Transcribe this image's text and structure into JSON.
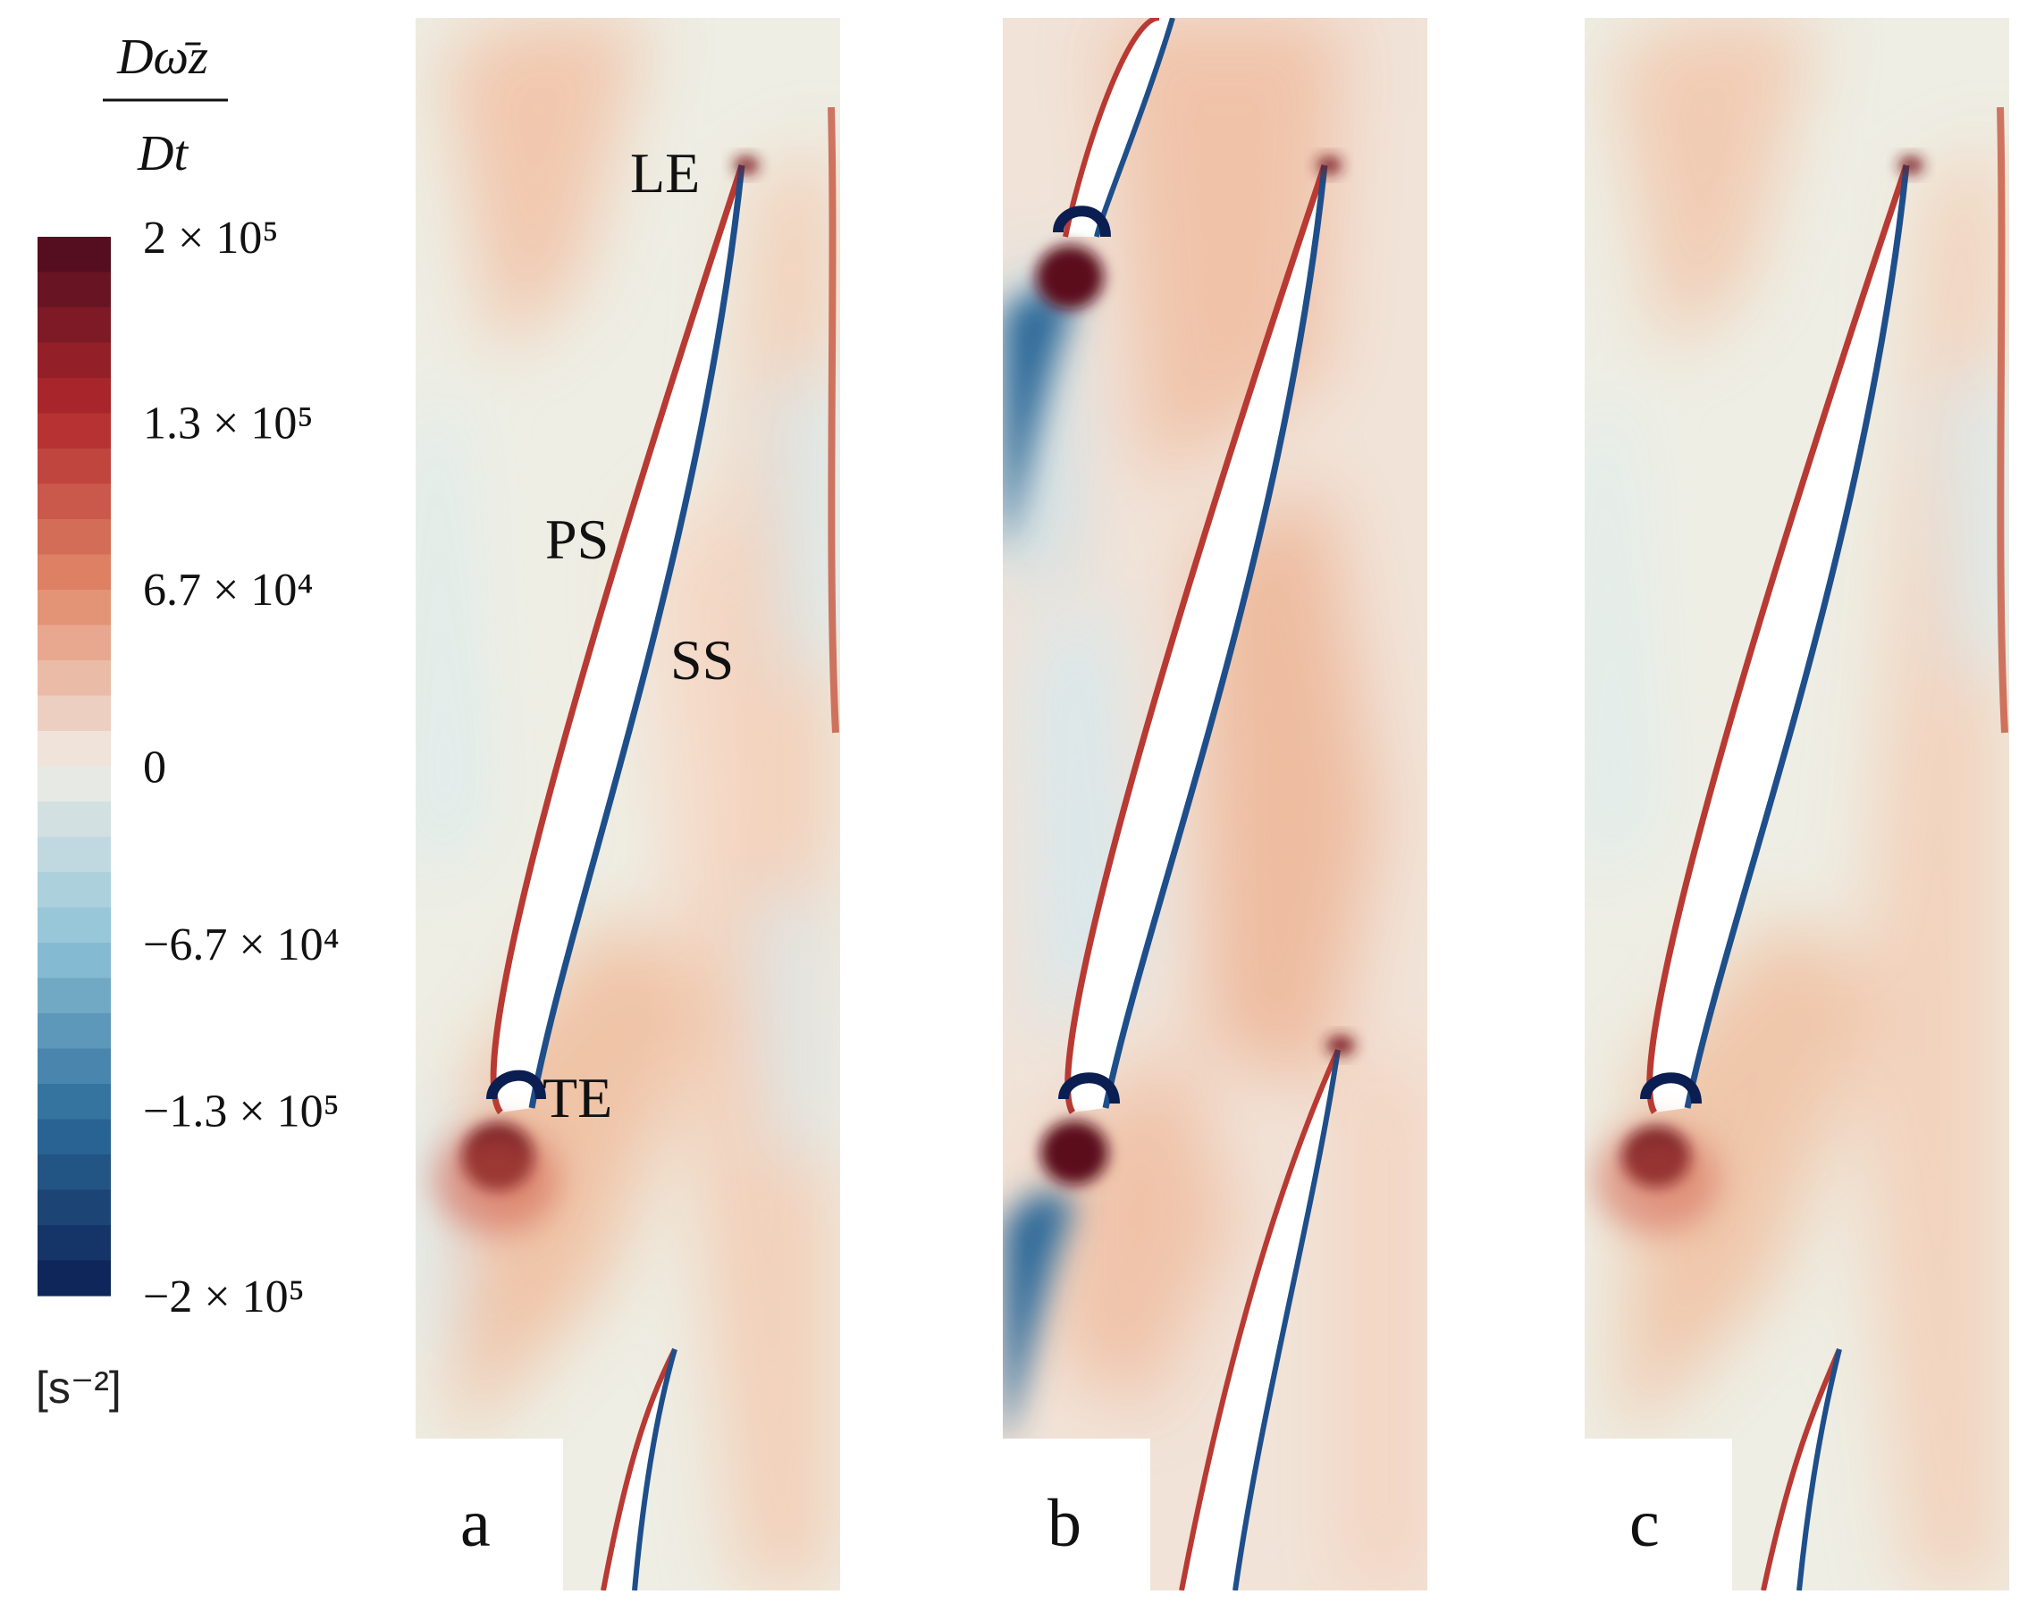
{
  "figure": {
    "colorbar": {
      "title_numerator": "Dω̄z",
      "title_denominator": "Dt",
      "tick_labels": [
        "2 × 10⁵",
        "1.3 × 10⁵",
        "6.7 × 10⁴",
        "0",
        "−6.7 × 10⁴",
        "−1.3 × 10⁵",
        "−2 × 10⁵"
      ],
      "tick_values": [
        200000,
        130000,
        67000,
        0,
        -67000,
        -130000,
        -200000
      ],
      "unit": "[s⁻²]",
      "levels": 30,
      "colors": {
        "max": "#4a0b1f",
        "high": "#b2282c",
        "mid_high": "#e28a6a",
        "zero": "#f1ede6",
        "mid_low": "#8ec3d8",
        "low": "#2c6b9a",
        "min": "#0b1e52"
      }
    },
    "panels": [
      {
        "label": "a"
      },
      {
        "label": "b"
      },
      {
        "label": "c"
      }
    ],
    "annotations": {
      "leading_edge": "LE",
      "pressure_side": "PS",
      "suction_side": "SS",
      "trailing_edge": "TE"
    },
    "background_color": "#eeeee4"
  }
}
